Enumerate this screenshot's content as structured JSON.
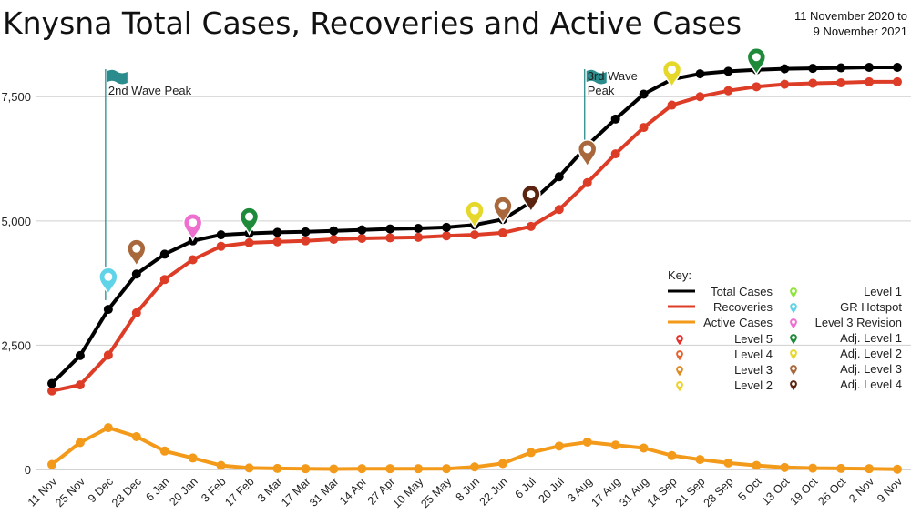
{
  "title": "Knysna Total Cases, Recoveries and Active Cases",
  "date_range": {
    "line1": "11 November 2020 to",
    "line2": "9 November 2021"
  },
  "chart_data": {
    "type": "line",
    "categories": [
      "11 Nov",
      "25 Nov",
      "9 Dec",
      "23 Dec",
      "6 Jan",
      "20 Jan",
      "3 Feb",
      "17 Feb",
      "3 Mar",
      "17 Mar",
      "31 Mar",
      "14 Apr",
      "27 Apr",
      "10 May",
      "25 May",
      "8 Jun",
      "22 Jun",
      "6 Jul",
      "20 Jul",
      "3 Aug",
      "17 Aug",
      "31 Aug",
      "14 Sep",
      "21 Sep",
      "28 Sep",
      "5 Oct",
      "13 Oct",
      "19 Oct",
      "26 Oct",
      "2 Nov",
      "9 Nov"
    ],
    "yticks": [
      0,
      2500,
      5000,
      7500
    ],
    "ytick_labels": [
      "0",
      "2,500",
      "5,000",
      "7,500"
    ],
    "ylim": [
      0,
      8200
    ],
    "grid": true,
    "series": [
      {
        "name": "Total Cases",
        "color": "#000000",
        "values": [
          1730,
          2290,
          3220,
          3930,
          4330,
          4600,
          4720,
          4750,
          4770,
          4780,
          4800,
          4820,
          4840,
          4850,
          4870,
          4920,
          5030,
          5380,
          5890,
          6520,
          7050,
          7550,
          7850,
          7960,
          8010,
          8040,
          8060,
          8070,
          8080,
          8090,
          8090
        ]
      },
      {
        "name": "Recoveries",
        "color": "#dd3c27",
        "values": [
          1580,
          1700,
          2300,
          3150,
          3820,
          4220,
          4490,
          4560,
          4580,
          4600,
          4630,
          4650,
          4660,
          4670,
          4700,
          4720,
          4760,
          4890,
          5230,
          5770,
          6350,
          6880,
          7330,
          7500,
          7620,
          7700,
          7750,
          7770,
          7780,
          7800,
          7800
        ]
      },
      {
        "name": "Active Cases",
        "color": "#f39a1a",
        "values": [
          100,
          540,
          840,
          660,
          370,
          230,
          80,
          30,
          20,
          15,
          10,
          15,
          15,
          15,
          15,
          50,
          120,
          340,
          470,
          550,
          490,
          430,
          280,
          200,
          130,
          80,
          40,
          25,
          20,
          15,
          5
        ]
      }
    ],
    "annotations": [
      {
        "label": "2nd Wave Peak",
        "category": "9 Dec",
        "color": "#2a8c8c"
      },
      {
        "label": "3rd Wave Peak",
        "category": "3 Aug",
        "color": "#2a8c8c"
      }
    ],
    "markers": [
      {
        "category": "9 Dec",
        "value": 3930,
        "level": "GR Hotspot"
      },
      {
        "category": "23 Dec",
        "value": 4500,
        "level": "Adj. Level 3"
      },
      {
        "category": "20 Jan",
        "value": 5020,
        "level": "Level 3 Revision"
      },
      {
        "category": "17 Feb",
        "value": 5140,
        "level": "Adj. Level 1"
      },
      {
        "category": "8 Jun",
        "value": 5270,
        "level": "Adj. Level 2"
      },
      {
        "category": "22 Jun",
        "value": 5360,
        "level": "Adj. Level 3"
      },
      {
        "category": "6 Jul",
        "value": 5590,
        "level": "Adj. Level 4"
      },
      {
        "category": "3 Aug",
        "value": 6500,
        "level": "Adj. Level 3"
      },
      {
        "category": "14 Sep",
        "value": 8100,
        "level": "Adj. Level 2"
      },
      {
        "category": "5 Oct",
        "value": 8350,
        "level": "Adj. Level 1"
      }
    ],
    "legend": {
      "title": "Key:",
      "placement": "right",
      "lines": [
        {
          "label": "Total Cases",
          "color": "#000000"
        },
        {
          "label": "Recoveries",
          "color": "#dd3c27"
        },
        {
          "label": "Active Cases",
          "color": "#f39a1a"
        }
      ],
      "levels_left": [
        {
          "label": "Level 5",
          "color": "#e8302a"
        },
        {
          "label": "Level 4",
          "color": "#e8602a"
        },
        {
          "label": "Level 3",
          "color": "#e08a22"
        },
        {
          "label": "Level 2",
          "color": "#f0d020"
        }
      ],
      "levels_right": [
        {
          "label": "Level 1",
          "color": "#8ee53a"
        },
        {
          "label": "GR Hotspot",
          "color": "#5fd4e8"
        },
        {
          "label": "Level 3 Revision",
          "color": "#ee6fd0"
        },
        {
          "label": "Adj. Level 1",
          "color": "#1f8a3a"
        },
        {
          "label": "Adj. Level 2",
          "color": "#e6d82a"
        },
        {
          "label": "Adj. Level 3",
          "color": "#a8683c"
        },
        {
          "label": "Adj. Level 4",
          "color": "#5a2410"
        }
      ]
    }
  }
}
